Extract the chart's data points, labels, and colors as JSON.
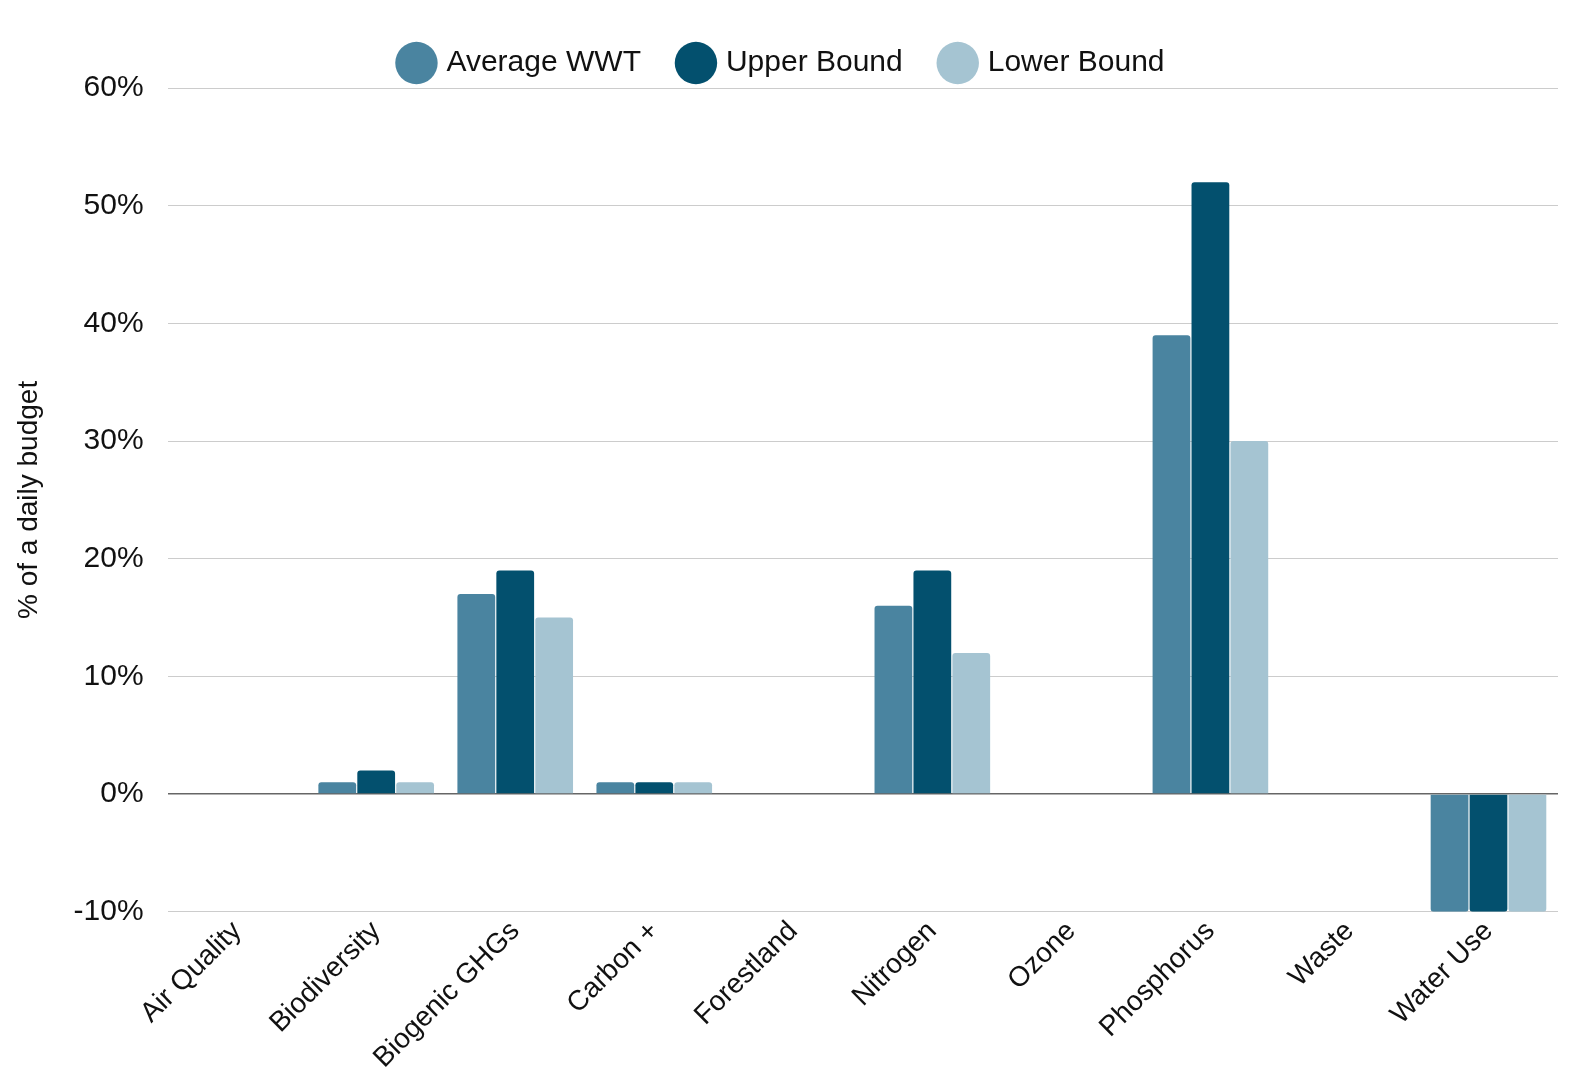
{
  "chart_data": {
    "type": "bar",
    "ylabel": "% of a daily budget",
    "categories": [
      "Air Quality",
      "Biodiversity",
      "Biogenic GHGs",
      "Carbon +",
      "Forestland",
      "Nitrogen",
      "Ozone",
      "Phosphorus",
      "Waste",
      "Water Use"
    ],
    "series": [
      {
        "name": "Average WWT",
        "color": "#4a84a0",
        "values": [
          0,
          1,
          17,
          1,
          0,
          16,
          0,
          39,
          0,
          -10
        ]
      },
      {
        "name": "Upper Bound",
        "color": "#03506e",
        "values": [
          0,
          2,
          19,
          1,
          0,
          19,
          0,
          52,
          0,
          -10
        ]
      },
      {
        "name": "Lower Bound",
        "color": "#a5c4d2",
        "values": [
          0,
          1,
          15,
          1,
          0,
          12,
          0,
          30,
          0,
          -10
        ]
      }
    ],
    "ylim": [
      -10,
      60
    ],
    "yticks": [
      {
        "value": -10,
        "label": "-10%"
      },
      {
        "value": 0,
        "label": "0%"
      },
      {
        "value": 10,
        "label": "10%"
      },
      {
        "value": 20,
        "label": "20%"
      },
      {
        "value": 30,
        "label": "30%"
      },
      {
        "value": 40,
        "label": "40%"
      },
      {
        "value": 50,
        "label": "50%"
      },
      {
        "value": 60,
        "label": "60%"
      }
    ],
    "grid": "y",
    "legend": "top"
  }
}
